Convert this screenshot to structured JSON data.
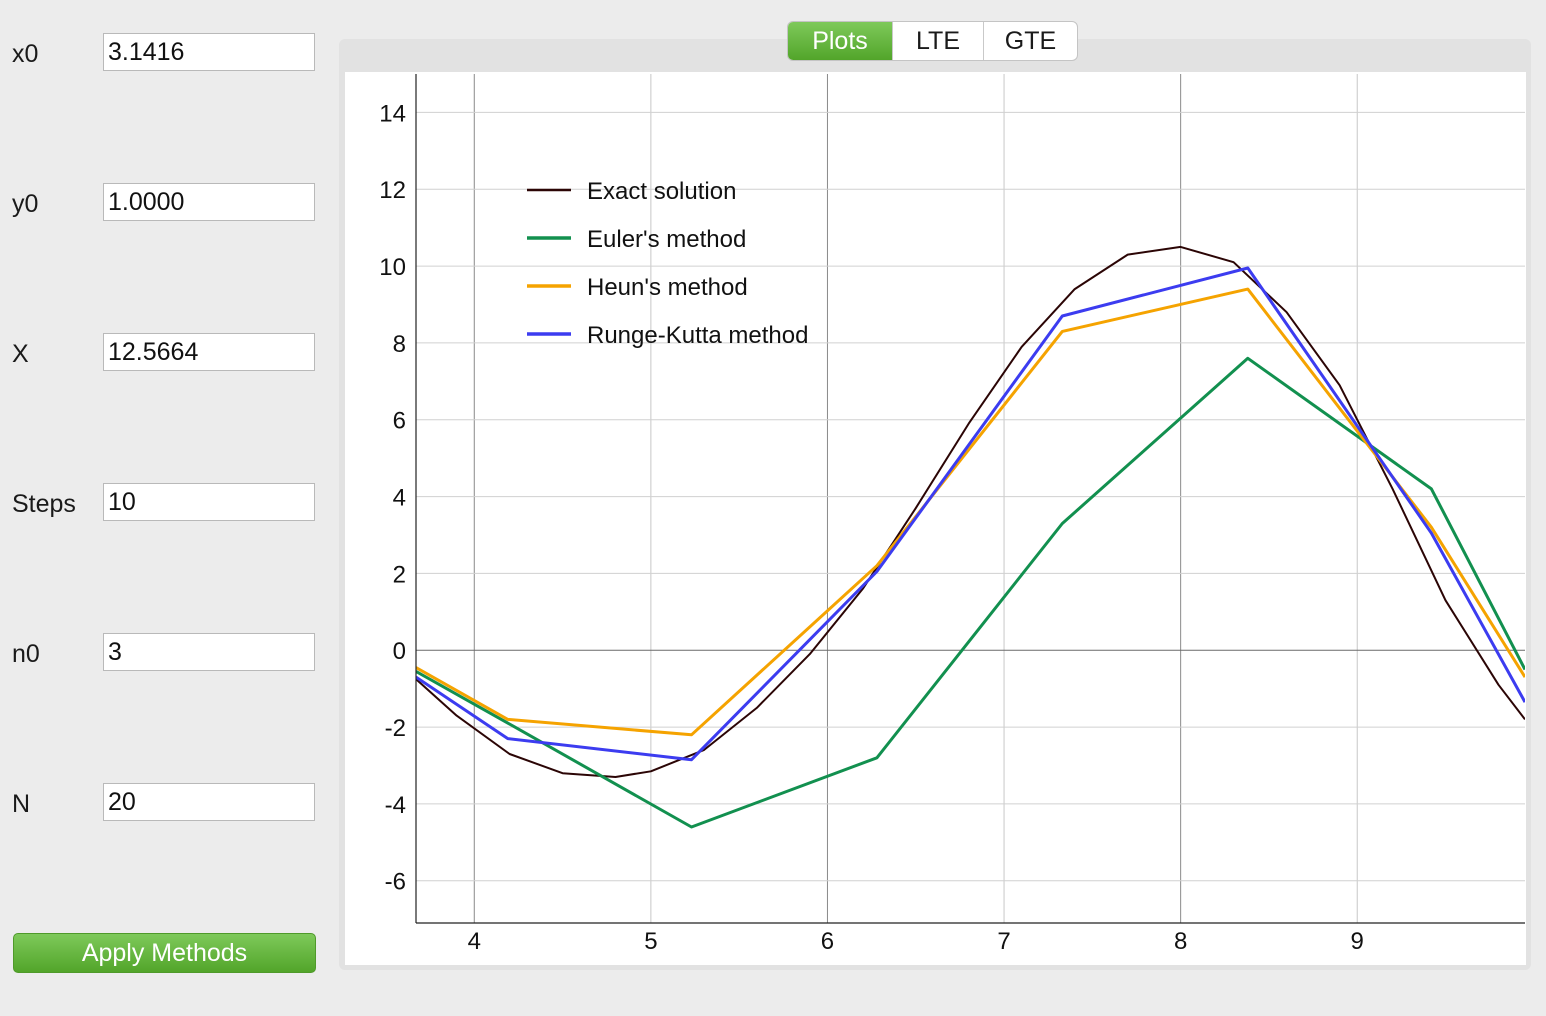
{
  "params": [
    {
      "label": "x0",
      "value": "3.1416"
    },
    {
      "label": "y0",
      "value": "1.0000"
    },
    {
      "label": "X",
      "value": "12.5664"
    },
    {
      "label": "Steps",
      "value": "10"
    },
    {
      "label": "n0",
      "value": "3"
    },
    {
      "label": "N",
      "value": "20"
    }
  ],
  "apply_button": "Apply Methods",
  "tabs": [
    "Plots",
    "LTE",
    "GTE"
  ],
  "active_tab": "Plots",
  "accent_color": "#5aaf33",
  "chart_data": {
    "type": "line",
    "xlim": [
      3.67,
      9.95
    ],
    "ylim": [
      -7.1,
      15.0
    ],
    "xticks": [
      4,
      5,
      6,
      7,
      8,
      9
    ],
    "yticks": [
      -6,
      -4,
      -2,
      0,
      2,
      4,
      6,
      8,
      10,
      12,
      14
    ],
    "grid": true,
    "legend_position": "top-left",
    "series": [
      {
        "name": "Exact solution",
        "color": "#2b0505",
        "x": [
          3.67,
          3.9,
          4.2,
          4.5,
          4.8,
          5.0,
          5.3,
          5.6,
          5.9,
          6.2,
          6.5,
          6.8,
          7.1,
          7.4,
          7.7,
          8.0,
          8.3,
          8.6,
          8.9,
          9.2,
          9.5,
          9.8,
          9.95
        ],
        "y": [
          -0.75,
          -1.7,
          -2.7,
          -3.2,
          -3.3,
          -3.15,
          -2.6,
          -1.5,
          -0.1,
          1.6,
          3.7,
          5.9,
          7.9,
          9.4,
          10.3,
          10.5,
          10.1,
          8.8,
          6.9,
          4.2,
          1.3,
          -0.9,
          -1.8
        ]
      },
      {
        "name": "Euler's method",
        "color": "#12904f",
        "x": [
          3.67,
          4.23,
          5.23,
          6.28,
          7.33,
          8.38,
          9.42,
          9.95
        ],
        "y": [
          -0.55,
          -2.0,
          -4.6,
          -2.8,
          3.3,
          7.6,
          4.2,
          -0.5
        ]
      },
      {
        "name": "Heun's method",
        "color": "#f5a300",
        "x": [
          3.67,
          4.19,
          5.23,
          6.28,
          7.33,
          8.38,
          9.42,
          9.95
        ],
        "y": [
          -0.45,
          -1.8,
          -2.2,
          2.2,
          8.3,
          9.4,
          3.2,
          -0.7
        ]
      },
      {
        "name": "Runge-Kutta method",
        "color": "#3c3cf0",
        "x": [
          3.67,
          4.19,
          5.23,
          6.28,
          7.33,
          8.38,
          9.42,
          9.95
        ],
        "y": [
          -0.7,
          -2.3,
          -2.85,
          2.05,
          8.7,
          9.95,
          3.05,
          -1.35
        ]
      }
    ]
  }
}
